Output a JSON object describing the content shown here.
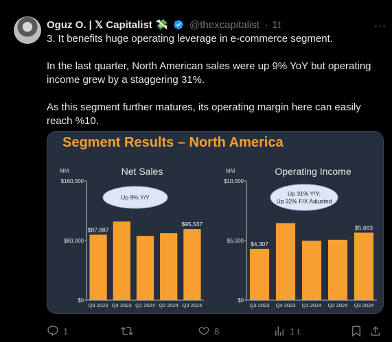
{
  "tweet": {
    "author_name": "Oguz O. | 𝕏 Capitalist 💸",
    "handle": "@thexcapitalist",
    "separator": "·",
    "time": "1t",
    "more_icon": "more-horizontal-icon",
    "paragraphs": [
      "3. It benefits huge operating leverage in e-commerce segment.",
      "In the last quarter, North American sales were up 9% YoY but operating income grew by a staggering 31%.",
      "As this segment further matures, its operating margin here can easily reach %10."
    ]
  },
  "card": {
    "title": "Segment Results – North America",
    "title_color": "#f5a030",
    "bar_color": "#f5a030"
  },
  "chart_data": [
    {
      "type": "bar",
      "title": "Net Sales",
      "ylabel": "MM",
      "categories": [
        "Q3 2023",
        "Q4 2023",
        "Q1 2024",
        "Q2 2024",
        "Q3 2024"
      ],
      "values": [
        87887,
        105500,
        86300,
        90000,
        95537
      ],
      "ylim": [
        0,
        160000
      ],
      "yticks": [
        "$0",
        "$80,000",
        "$160,000"
      ],
      "data_labels": {
        "0": "$87,887",
        "4": "$95,537"
      },
      "annotation": "Up 9% Y/Y"
    },
    {
      "type": "bar",
      "title": "Operating Income",
      "ylabel": "MM",
      "categories": [
        "Q3 2023",
        "Q4 2023",
        "Q1 2024",
        "Q2 2024",
        "Q3 2024"
      ],
      "values": [
        4307,
        6461,
        4983,
        5065,
        5663
      ],
      "ylim": [
        0,
        10000
      ],
      "yticks": [
        "$0",
        "$5,000",
        "$10,000"
      ],
      "data_labels": {
        "0": "$4,307",
        "4": "$5,663"
      },
      "annotation": [
        "Up 31% Y/Y;",
        "Up 32% F/X Adjusted"
      ]
    }
  ],
  "actions": {
    "reply_count": "1",
    "retweet_count": "",
    "like_count": "8",
    "views_count": "1 t.",
    "icons": [
      "reply-icon",
      "retweet-icon",
      "like-icon",
      "views-icon",
      "bookmark-icon",
      "share-icon"
    ]
  }
}
